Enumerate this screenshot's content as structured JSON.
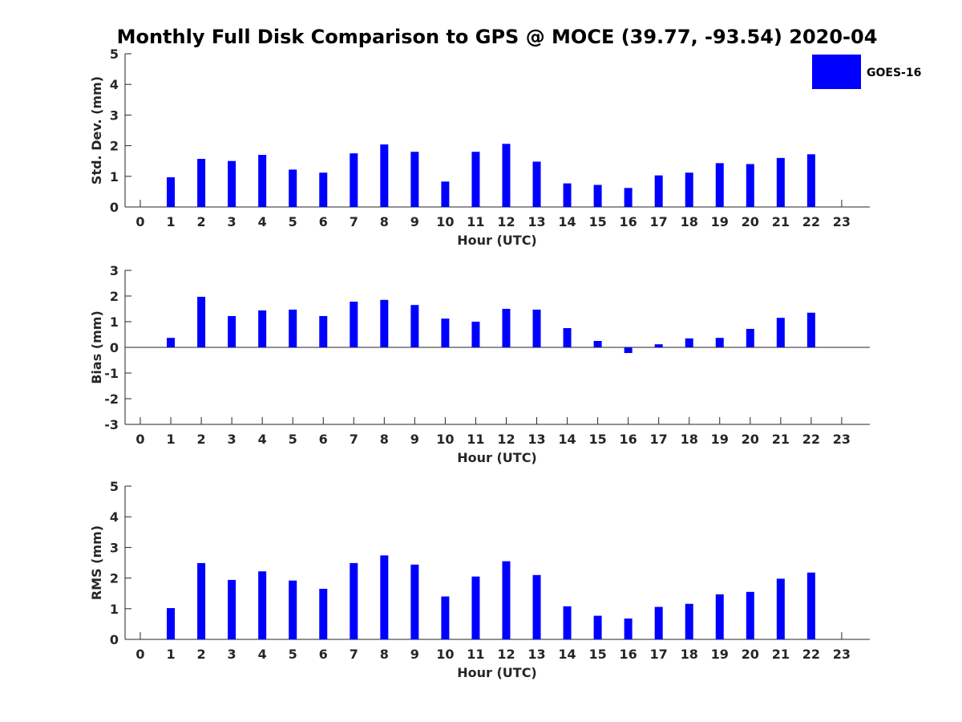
{
  "title": "Monthly Full Disk Comparison to GPS @ MOCE (39.77, -93.54) 2020-04",
  "legend": {
    "label": "GOES-16",
    "color": "#0000ff"
  },
  "chart_data": [
    {
      "type": "bar",
      "id": "stddev",
      "xlabel": "Hour (UTC)",
      "ylabel": "Std. Dev. (mm)",
      "ylim": [
        0,
        5
      ],
      "yticks": [
        "0",
        "1",
        "2",
        "3",
        "4",
        "5"
      ],
      "xticks": [
        "0",
        "1",
        "2",
        "3",
        "4",
        "5",
        "6",
        "7",
        "8",
        "9",
        "10",
        "11",
        "12",
        "13",
        "14",
        "15",
        "16",
        "17",
        "18",
        "19",
        "20",
        "21",
        "22",
        "23"
      ],
      "categories": [
        1,
        2,
        3,
        4,
        5,
        6,
        7,
        8,
        9,
        10,
        11,
        12,
        13,
        14,
        15,
        16,
        17,
        18,
        19,
        20,
        21,
        22
      ],
      "values": [
        0.97,
        1.57,
        1.5,
        1.7,
        1.22,
        1.12,
        1.75,
        2.04,
        1.8,
        0.83,
        1.8,
        2.06,
        1.48,
        0.77,
        0.72,
        0.62,
        1.03,
        1.12,
        1.43,
        1.4,
        1.6,
        1.72
      ],
      "grid": false,
      "series_name": "GOES-16"
    },
    {
      "type": "bar",
      "id": "bias",
      "xlabel": "Hour (UTC)",
      "ylabel": "Bias (mm)",
      "ylim": [
        -3,
        3
      ],
      "yticks": [
        "-3",
        "-2",
        "-1",
        "0",
        "1",
        "2",
        "3"
      ],
      "xticks": [
        "0",
        "1",
        "2",
        "3",
        "4",
        "5",
        "6",
        "7",
        "8",
        "9",
        "10",
        "11",
        "12",
        "13",
        "14",
        "15",
        "16",
        "17",
        "18",
        "19",
        "20",
        "21",
        "22",
        "23"
      ],
      "categories": [
        1,
        2,
        3,
        4,
        5,
        6,
        7,
        8,
        9,
        10,
        11,
        12,
        13,
        14,
        15,
        16,
        17,
        18,
        19,
        20,
        21,
        22
      ],
      "values": [
        0.37,
        1.97,
        1.22,
        1.44,
        1.47,
        1.22,
        1.78,
        1.85,
        1.65,
        1.12,
        1.0,
        1.5,
        1.47,
        0.75,
        0.25,
        -0.22,
        0.12,
        0.35,
        0.37,
        0.72,
        1.15,
        1.35
      ],
      "grid": false,
      "zero_line": true,
      "series_name": "GOES-16"
    },
    {
      "type": "bar",
      "id": "rms",
      "xlabel": "Hour (UTC)",
      "ylabel": "RMS (mm)",
      "ylim": [
        0,
        5
      ],
      "yticks": [
        "0",
        "1",
        "2",
        "3",
        "4",
        "5"
      ],
      "xticks": [
        "0",
        "1",
        "2",
        "3",
        "4",
        "5",
        "6",
        "7",
        "8",
        "9",
        "10",
        "11",
        "12",
        "13",
        "14",
        "15",
        "16",
        "17",
        "18",
        "19",
        "20",
        "21",
        "22",
        "23"
      ],
      "categories": [
        1,
        2,
        3,
        4,
        5,
        6,
        7,
        8,
        9,
        10,
        11,
        12,
        13,
        14,
        15,
        16,
        17,
        18,
        19,
        20,
        21,
        22
      ],
      "values": [
        1.02,
        2.49,
        1.94,
        2.22,
        1.92,
        1.65,
        2.49,
        2.74,
        2.44,
        1.4,
        2.05,
        2.55,
        2.1,
        1.08,
        0.77,
        0.68,
        1.06,
        1.16,
        1.47,
        1.55,
        1.98,
        2.18
      ],
      "grid": false,
      "series_name": "GOES-16"
    }
  ]
}
